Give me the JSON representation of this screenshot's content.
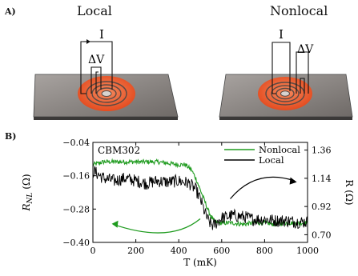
{
  "panel_a": {
    "label": "A)",
    "left_title": "Local",
    "right_title": "Nonlocal",
    "current_label": "I",
    "voltage_label": "ΔV"
  },
  "panel_b": {
    "label": "B)",
    "sample_label": "CBM302",
    "legend": [
      "Nonlocal",
      "Local"
    ]
  },
  "colors": {
    "nonlocal": "#1f9b1f",
    "local": "#000000",
    "disk": "#f05a28",
    "substrate": "#8e8a87"
  },
  "chart_data": {
    "type": "line",
    "xlabel": "T (mK)",
    "ylabel_left": "R_NL (Ω)",
    "ylabel_right": "R (Ω)",
    "xlim": [
      0,
      1000
    ],
    "ylim_left": [
      -0.4,
      -0.04
    ],
    "ylim_right": [
      0.64,
      1.42
    ],
    "xticks": [
      0,
      200,
      400,
      600,
      800,
      1000
    ],
    "yticks_left": [
      -0.04,
      -0.16,
      -0.28,
      -0.4
    ],
    "yticks_right": [
      1.36,
      1.14,
      0.92,
      0.7
    ],
    "xtick_labels": [
      "0",
      "200",
      "400",
      "600",
      "800",
      "1000"
    ],
    "ytick_left_labels": [
      "−0.04",
      "−0.16",
      "−0.28",
      "−0.40"
    ],
    "ytick_right_labels": [
      "1.36",
      "1.14",
      "0.92",
      "0.70"
    ],
    "legend_position": "top-right",
    "grid": false,
    "series": [
      {
        "name": "Nonlocal",
        "axis": "left",
        "x": [
          0,
          50,
          100,
          150,
          200,
          250,
          300,
          350,
          400,
          430,
          460,
          480,
          500,
          520,
          540,
          560,
          580,
          600,
          650,
          700,
          750,
          800,
          850,
          900,
          950,
          1000
        ],
        "y": [
          -0.12,
          -0.11,
          -0.11,
          -0.11,
          -0.11,
          -0.11,
          -0.11,
          -0.115,
          -0.12,
          -0.12,
          -0.14,
          -0.17,
          -0.21,
          -0.25,
          -0.29,
          -0.32,
          -0.33,
          -0.33,
          -0.33,
          -0.335,
          -0.33,
          -0.33,
          -0.335,
          -0.33,
          -0.33,
          -0.33
        ]
      },
      {
        "name": "Local",
        "axis": "right",
        "x": [
          0,
          50,
          100,
          150,
          200,
          250,
          300,
          350,
          400,
          450,
          480,
          500,
          520,
          540,
          560,
          580,
          600,
          650,
          700,
          750,
          800,
          850,
          900,
          950,
          1000
        ],
        "y": [
          1.2,
          1.14,
          1.12,
          1.14,
          1.12,
          1.1,
          1.12,
          1.11,
          1.12,
          1.1,
          1.05,
          0.98,
          0.88,
          0.8,
          0.77,
          0.8,
          0.83,
          0.85,
          0.84,
          0.82,
          0.82,
          0.81,
          0.81,
          0.8,
          0.8
        ]
      }
    ],
    "noise_amplitude": {
      "Nonlocal": 0.008,
      "Local": 0.05
    }
  }
}
